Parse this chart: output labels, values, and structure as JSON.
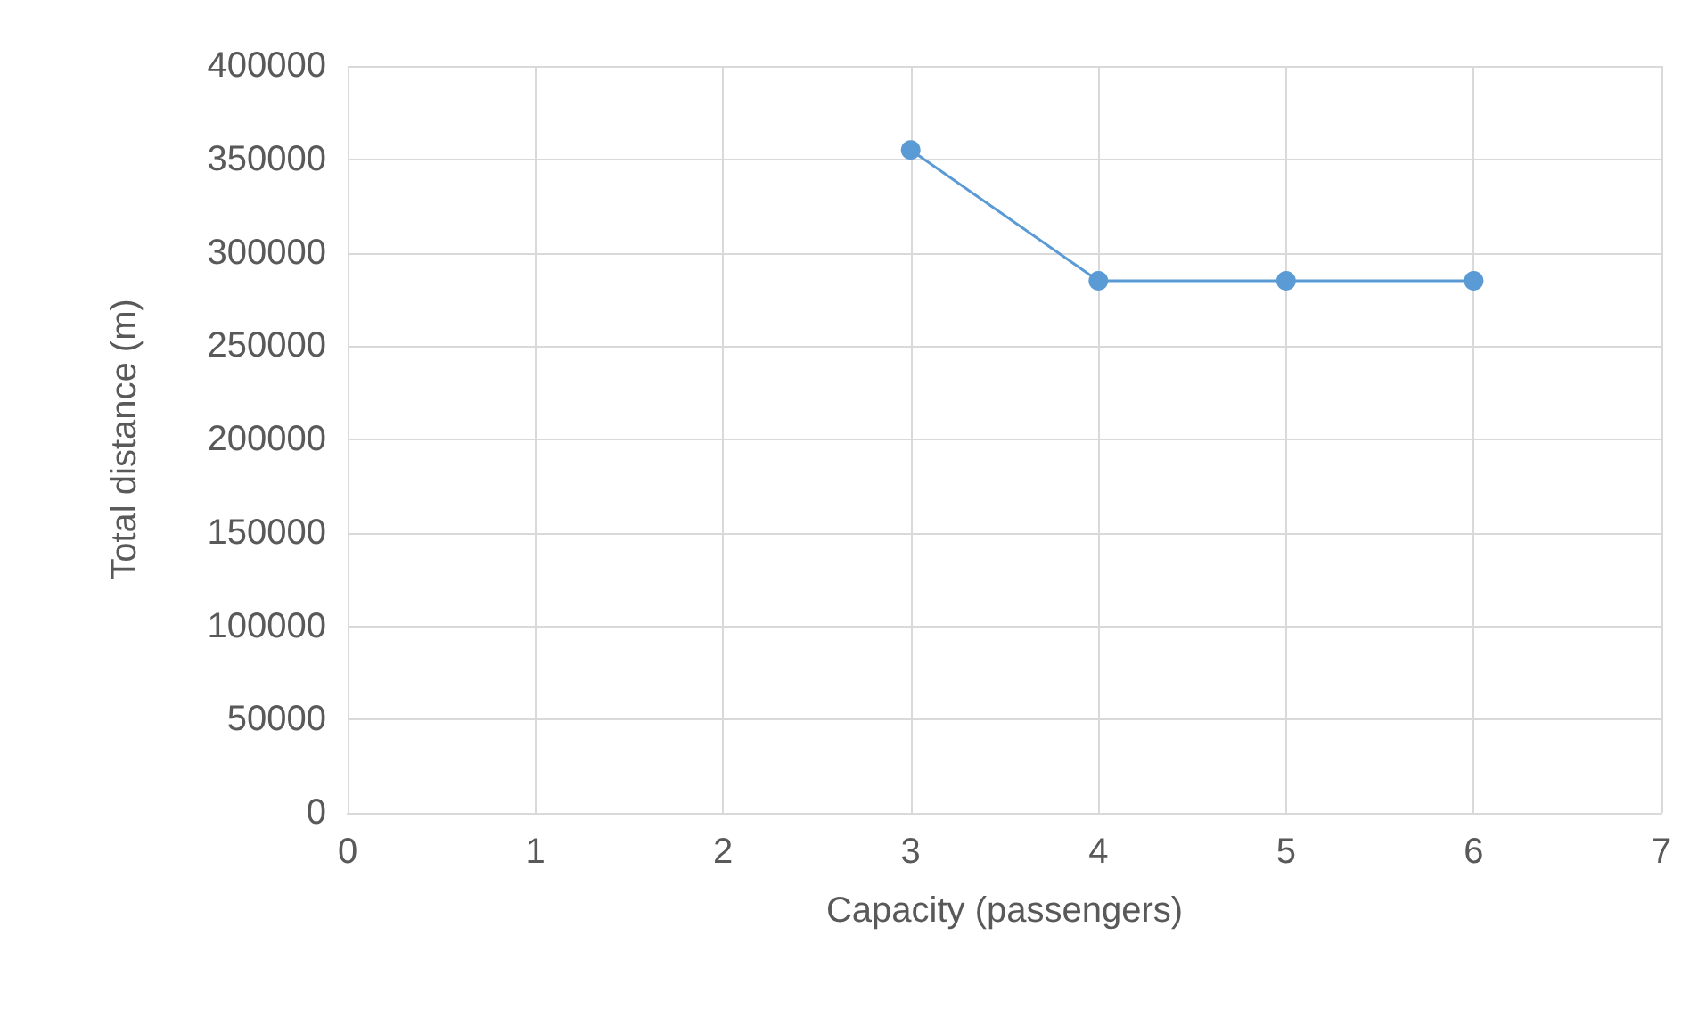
{
  "chart_data": {
    "type": "line",
    "xlabel": "Capacity (passengers)",
    "ylabel": "Total distance (m)",
    "x": [
      3,
      4,
      5,
      6
    ],
    "series": [
      {
        "color": "#5b9bd5",
        "values": [
          355000,
          285000,
          285000,
          285000
        ]
      }
    ],
    "xlim": [
      0,
      7
    ],
    "xticks": [
      0,
      1,
      2,
      3,
      4,
      5,
      6,
      7
    ],
    "ylim": [
      0,
      400000
    ],
    "yticks": [
      0,
      50000,
      100000,
      150000,
      200000,
      250000,
      300000,
      350000,
      400000
    ],
    "grid": true,
    "marker": "circle",
    "line_style": "solid"
  }
}
